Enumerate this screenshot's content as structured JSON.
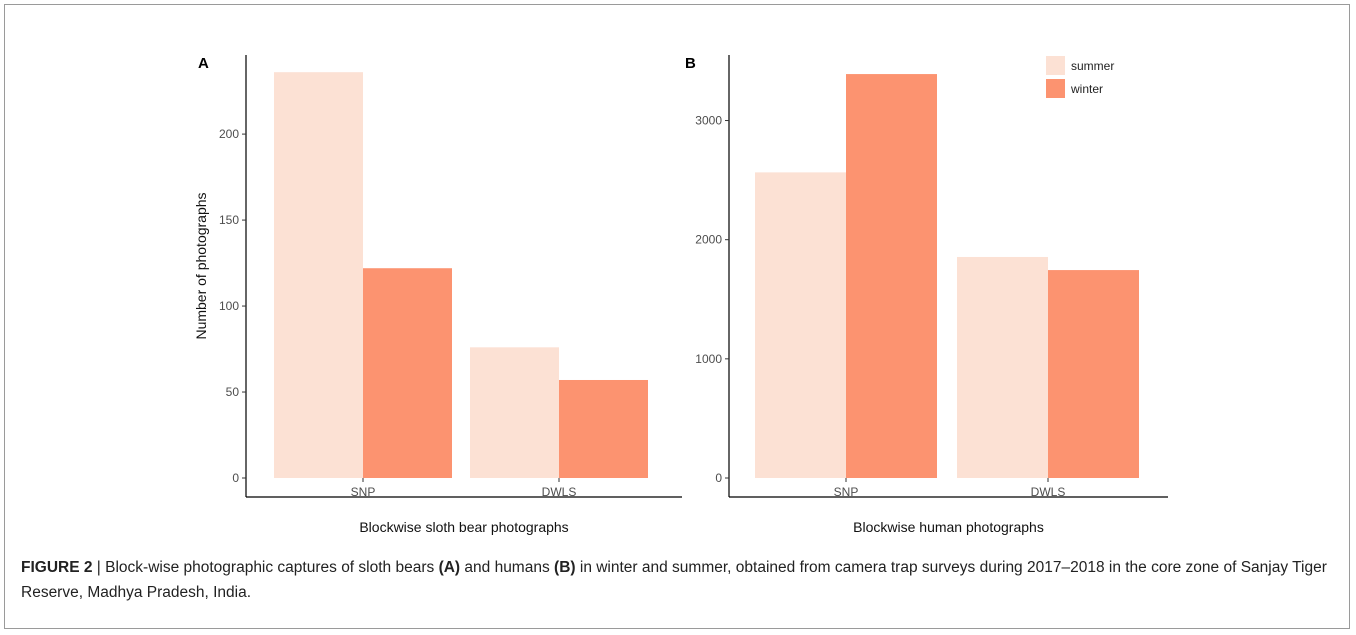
{
  "colors": {
    "summer": "#fce1d4",
    "winter": "#fc9370"
  },
  "chart_data": [
    {
      "type": "bar",
      "panel_label": "A",
      "categories": [
        "SNP",
        "DWLS"
      ],
      "series": [
        {
          "name": "summer",
          "values": [
            236,
            76
          ]
        },
        {
          "name": "winter",
          "values": [
            122,
            57
          ]
        }
      ],
      "ylim": [
        0,
        246
      ],
      "yticks": [
        0,
        50,
        100,
        150,
        200
      ],
      "xlabel": "Blockwise sloth bear photographs",
      "ylabel": "Number of photographs",
      "grid": false,
      "legend": null
    },
    {
      "type": "bar",
      "panel_label": "B",
      "categories": [
        "SNP",
        "DWLS"
      ],
      "series": [
        {
          "name": "summer",
          "values": [
            2565,
            1855
          ]
        },
        {
          "name": "winter",
          "values": [
            3390,
            1745
          ]
        }
      ],
      "ylim": [
        0,
        3550
      ],
      "yticks": [
        0,
        1000,
        2000,
        3000
      ],
      "xlabel": "Blockwise human photographs",
      "ylabel": "",
      "grid": false,
      "legend": "top-right"
    }
  ],
  "caption": {
    "label": "FIGURE 2",
    "separator": " | ",
    "part1": "Block-wise photographic captures of sloth bears ",
    "ref_a": "(A)",
    "part2": " and humans ",
    "ref_b": "(B)",
    "part3": " in winter and summer, obtained from camera trap surveys during 2017–2018 in the core zone of Sanjay Tiger Reserve, Madhya Pradesh, India."
  }
}
